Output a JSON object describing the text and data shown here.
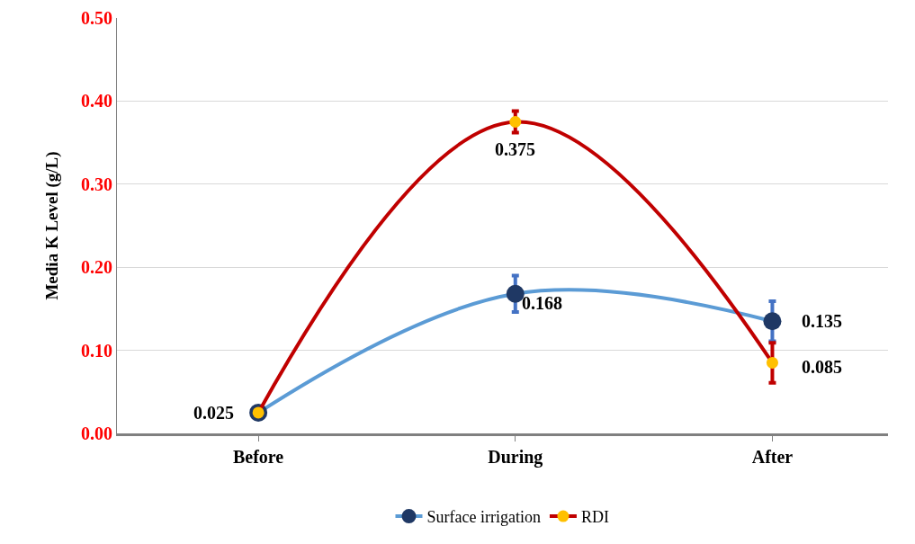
{
  "chart_data": {
    "type": "line",
    "ylabel": "Media K Level (g/L)",
    "categories": [
      "Before",
      "During",
      "After"
    ],
    "series": [
      {
        "name": "Surface irrigation",
        "color": "#5b9bd5",
        "colors": [
          "#1f3864",
          "#1f3864",
          "#1f3864"
        ],
        "values": [
          0.025,
          0.168,
          0.135
        ],
        "errors": [
          null,
          0.022,
          0.024
        ],
        "value_labels": [
          null,
          "0.168",
          "0.135"
        ]
      },
      {
        "name": "RDI",
        "color": "#c00000",
        "colors": [
          "#ffc000",
          "#ffc000",
          "#ffc000"
        ],
        "values": [
          0.025,
          0.375,
          0.085
        ],
        "errors": [
          null,
          0.013,
          0.024
        ],
        "value_labels": [
          "0.025",
          "0.375",
          "0.085"
        ]
      }
    ],
    "ylim": [
      0,
      0.5
    ],
    "yticks": [
      {
        "value": 0,
        "label": "0.00"
      },
      {
        "value": 0.1,
        "label": "0.10"
      },
      {
        "value": 0.2,
        "label": "0.20"
      },
      {
        "value": 0.3,
        "label": "0.30"
      },
      {
        "value": 0.4,
        "label": "0.40"
      },
      {
        "value": 0.5,
        "label": "0.50"
      }
    ],
    "grid": "y",
    "legend": "bottom",
    "marker": "circle",
    "line_style": "solid"
  }
}
